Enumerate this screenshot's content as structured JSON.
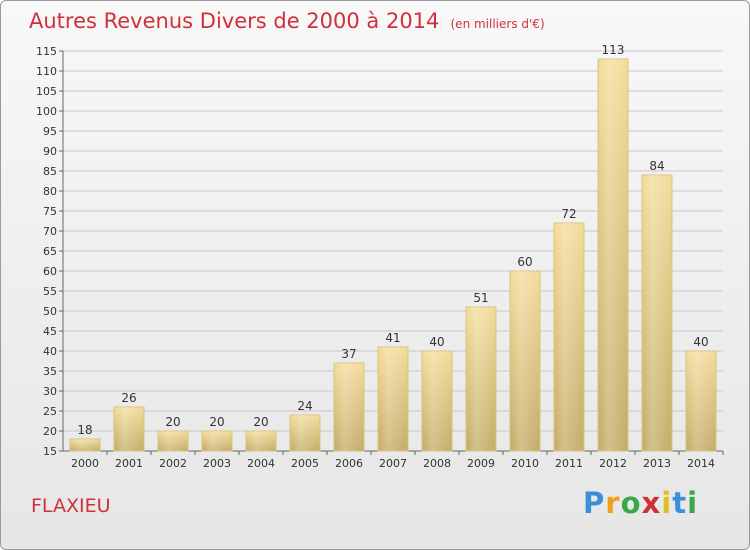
{
  "title": "Autres Revenus Divers de 2000 à 2014",
  "subtitle": "(en milliers d'€)",
  "commune": "FLAXIEU",
  "logo": {
    "letters": [
      "P",
      "r",
      "o",
      "x",
      "i",
      "t",
      "i"
    ],
    "colors": [
      "#3a8fd8",
      "#f0a020",
      "#3aa84a",
      "#d03030",
      "#e0c020",
      "#3a8fd8",
      "#3aa84a"
    ]
  },
  "colors": {
    "title": "#d0303a",
    "bar_light": "#f3dc99",
    "bar_dark": "#c2ab66",
    "grid": "#c8c8c8"
  },
  "chart_data": {
    "type": "bar",
    "title": "Autres Revenus Divers de 2000 à 2014",
    "subtitle": "(en milliers d'€)",
    "categories": [
      "2000",
      "2001",
      "2002",
      "2003",
      "2004",
      "2005",
      "2006",
      "2007",
      "2008",
      "2009",
      "2010",
      "2011",
      "2012",
      "2013",
      "2014"
    ],
    "values": [
      18,
      26,
      20,
      20,
      20,
      24,
      37,
      41,
      40,
      51,
      60,
      72,
      113,
      84,
      40
    ],
    "ylim": [
      15,
      115
    ],
    "ytick_step": 5,
    "grid": true,
    "data_labels": true
  }
}
